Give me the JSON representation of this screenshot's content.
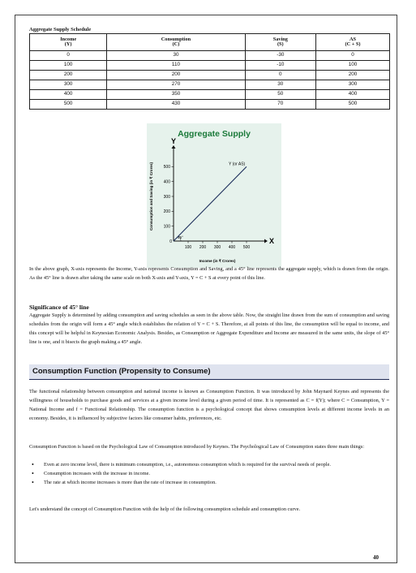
{
  "table": {
    "caption": "Aggregate Supply Schedule",
    "headers": [
      {
        "line1": "Income",
        "line2": "(Y)"
      },
      {
        "line1": "Consumption",
        "line2": "(C)"
      },
      {
        "line1": "Saving",
        "line2": "(S)"
      },
      {
        "line1": "AS",
        "line2": "(C + S)"
      }
    ],
    "rows": [
      [
        "0",
        "30",
        "-30",
        "0"
      ],
      [
        "100",
        "110",
        "-10",
        "100"
      ],
      [
        "200",
        "200",
        "0",
        "200"
      ],
      [
        "300",
        "270",
        "30",
        "300"
      ],
      [
        "400",
        "350",
        "50",
        "400"
      ],
      [
        "500",
        "430",
        "70",
        "500"
      ]
    ]
  },
  "chart_data": {
    "type": "line",
    "title": "Aggregate Supply",
    "xlabel": "Income (in ₹ Crores)",
    "ylabel": "Consumption and Saving (in ₹ Crores)",
    "x_axis_letter": "X",
    "y_axis_letter": "Y",
    "origin_label": "0",
    "angle_label": "45°",
    "x_ticks": [
      100,
      200,
      300,
      400,
      500
    ],
    "y_ticks": [
      100,
      200,
      300,
      400,
      500
    ],
    "xlim": [
      0,
      600
    ],
    "ylim": [
      0,
      600
    ],
    "series": [
      {
        "name": "Y (or AS)",
        "x": [
          0,
          500
        ],
        "y": [
          0,
          500
        ]
      }
    ],
    "title_color": "#1b7a3a",
    "line_color": "#1b2d5a",
    "background_color": "#e6f2ec"
  },
  "text": {
    "para1": "In the above graph, X-axis represents the Income, Y-axis represents Consumption and Saving, and a 45° line represents the aggregate supply, which is drawn from the origin. As the 45° line is drawn after taking the same scale on both X-axis and Y-axis, Y = C + S at every point of this line.",
    "sub1": "Significance of 45° line",
    "para2": "Aggregate Supply is determined by adding consumption and saving schedules as seen in the above table. Now, the straight line drawn from the sum of consumption and saving schedules from the origin will form a 45° angle which establishes the relation of Y = C + S. Therefore, at all points of this line, the consumption will be equal to income, and this concept will be helpful in Keynesian Economic Analysis. Besides, as Consumption or Aggregate Expenditure and Income are measured in the same units, the slope of 45° line is one, and it bisects the graph making a 45° angle.",
    "section_title": "Consumption Function (Propensity to Consume)",
    "para3": "The functional relationship between consumption and national income is known as Consumption Function. It was introduced by John Maynard Keynes and represents the willingness of households to purchase goods and services at a given income level during a given period of time. It is represented as C = f(Y); where C = Consumption, Y = National Income and f = Functional Relationship. The consumption function is a psychological concept that shows consumption levels at different income levels in an economy. Besides, it is influenced by subjective factors like consumer habits, preferences, etc.",
    "para4": "Consumption Function is based on the Psychological Law of Consumption introduced by Keynes. The Psychological Law of Consumption states three main things:",
    "bullets": [
      "Even at zero income level, there is minimum consumption, i.e., autonomous consumption which is required for the survival needs of people.",
      "Consumption increases with the increase in income.",
      "The rate at which income increases is more than the rate of increase in consumption."
    ],
    "para5": "Let's understand the concept of Consumption Function with the help of the following consumption schedule and consumption curve.",
    "page_number": "40"
  }
}
